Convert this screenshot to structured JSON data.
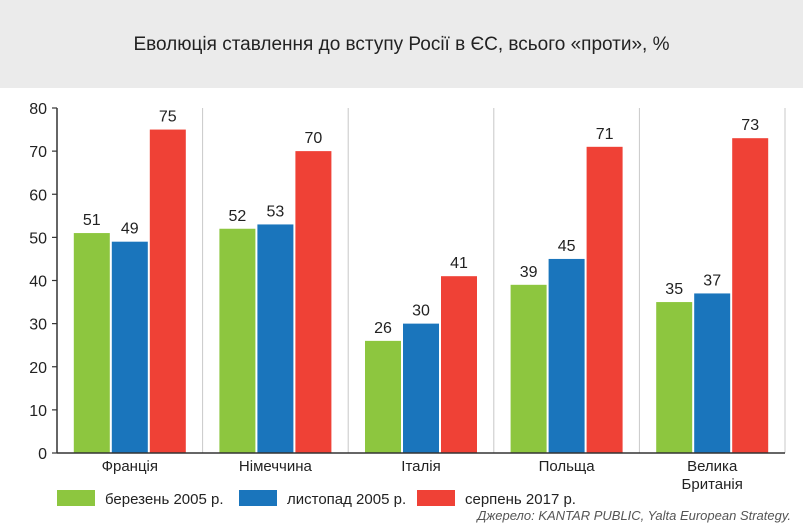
{
  "chart_data": {
    "type": "bar",
    "title": "Еволюція ставлення до вступу Росії в ЄС,  всього «проти», %",
    "categories": [
      "Франція",
      "Німеччина",
      "Італія",
      "Польща",
      "Велика Британія"
    ],
    "category_lines": [
      [
        "Франція"
      ],
      [
        "Німеччина"
      ],
      [
        "Італія"
      ],
      [
        "Польща"
      ],
      [
        "Велика",
        "Британія"
      ]
    ],
    "series": [
      {
        "name": "березень 2005 р.",
        "color": "#8dc63f",
        "values": [
          51,
          52,
          26,
          39,
          35
        ]
      },
      {
        "name": "листопад 2005 р.",
        "color": "#1a75bc",
        "values": [
          49,
          53,
          30,
          45,
          37
        ]
      },
      {
        "name": "серпень 2017 р.",
        "color": "#ef4136",
        "values": [
          75,
          70,
          41,
          71,
          73
        ]
      }
    ],
    "ylim": [
      0,
      80
    ],
    "yticks": [
      0,
      10,
      20,
      30,
      40,
      50,
      60,
      70,
      80
    ],
    "grid": "vertical separators between categories",
    "legend": "bottom-left"
  },
  "source": "Джерело: KANTAR PUBLIC, Yalta European Strategy."
}
